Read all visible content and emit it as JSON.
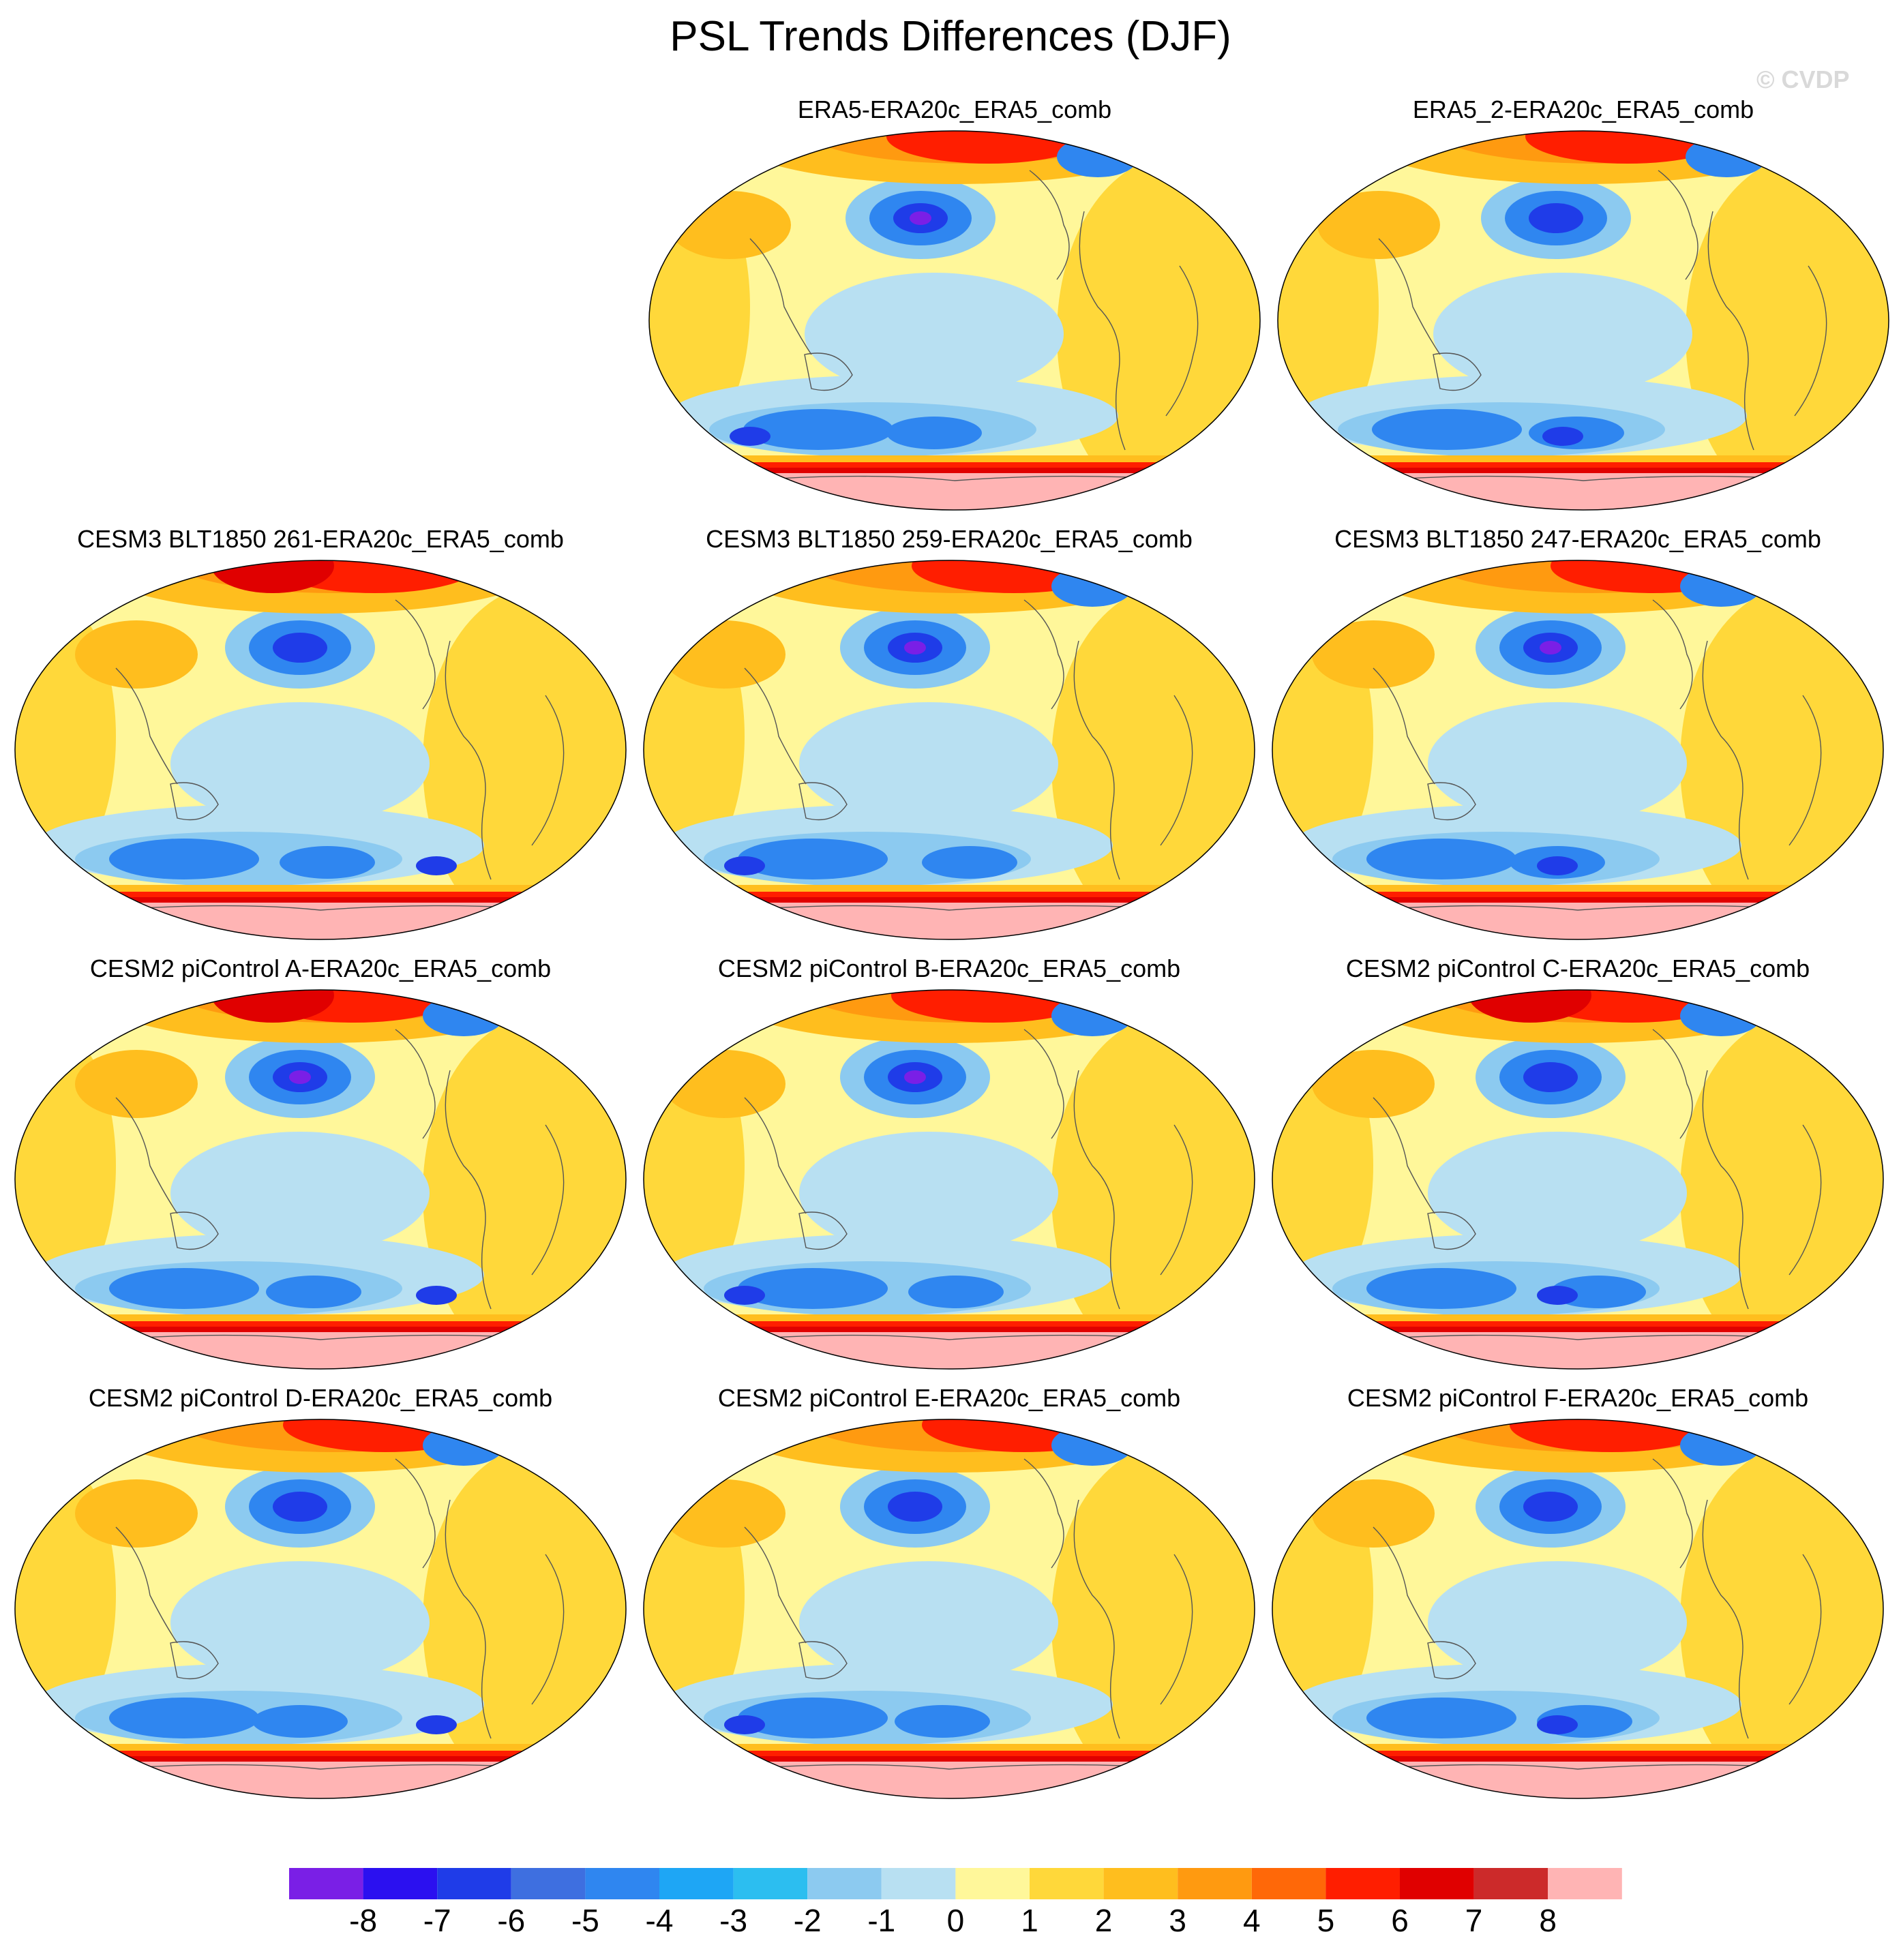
{
  "title": "PSL Trends Differences (DJF)",
  "watermark": "© CVDP",
  "panels": [
    {
      "label": "ERA5-ERA20c_ERA5_comb",
      "variant": 0
    },
    {
      "label": "ERA5_2-ERA20c_ERA5_comb",
      "variant": 1
    },
    {
      "label": "CESM3 BLT1850 261-ERA20c_ERA5_comb",
      "variant": 2
    },
    {
      "label": "CESM3 BLT1850 259-ERA20c_ERA5_comb",
      "variant": 3
    },
    {
      "label": "CESM3 BLT1850 247-ERA20c_ERA5_comb",
      "variant": 4
    },
    {
      "label": "CESM2 piControl A-ERA20c_ERA5_comb",
      "variant": 5
    },
    {
      "label": "CESM2 piControl B-ERA20c_ERA5_comb",
      "variant": 6
    },
    {
      "label": "CESM2 piControl C-ERA20c_ERA5_comb",
      "variant": 7
    },
    {
      "label": "CESM2 piControl D-ERA20c_ERA5_comb",
      "variant": 8
    },
    {
      "label": "CESM2 piControl E-ERA20c_ERA5_comb",
      "variant": 9
    },
    {
      "label": "CESM2 piControl F-ERA20c_ERA5_comb",
      "variant": 10
    }
  ],
  "colorbar": {
    "colors": [
      "#7a1fe6",
      "#2b10f0",
      "#1f3ce8",
      "#3e6fe0",
      "#2f86f0",
      "#1ea6f5",
      "#2cbef0",
      "#8ccaf0",
      "#b8e0f2",
      "#fff79a",
      "#ffd83a",
      "#ffbe1e",
      "#ff9a10",
      "#ff6808",
      "#ff1e00",
      "#e00000",
      "#cc2a2a",
      "#ffb4b4"
    ],
    "labels": [
      "-8",
      "-7",
      "-6",
      "-5",
      "-4",
      "-3",
      "-2",
      "-1",
      "0",
      "1",
      "2",
      "3",
      "4",
      "5",
      "6",
      "7",
      "8"
    ]
  },
  "colors": {
    "light_blue": "#b8e0f2",
    "pale_yellow": "#fff79a",
    "yellow": "#ffd83a",
    "orange": "#ffbe1e",
    "deep_orange": "#ff9a10",
    "red": "#ff1e00",
    "dark_red": "#e00000",
    "pink": "#ffb4b4",
    "blue": "#2f86f0",
    "deep_blue": "#1f3ce8",
    "purple": "#7a1fe6",
    "coast": "#555555"
  }
}
